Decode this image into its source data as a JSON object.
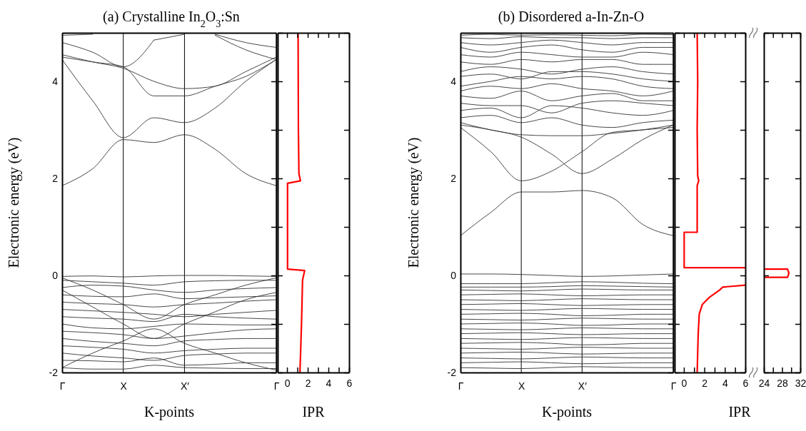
{
  "chart_data": [
    {
      "type": "line",
      "title": "(a) Crystalline In$_{2}$O$_{3}$:Sn",
      "xlabel": "K-points",
      "ylabel": "Electronic energy (eV)",
      "categories": [
        "Γ",
        null,
        "X",
        null,
        "X′",
        null,
        null,
        "Γ"
      ],
      "ylim": [
        -2,
        5
      ],
      "yticks": [
        -2,
        {
          "value": -1,
          "label": null
        },
        0,
        {
          "value": 1,
          "label": null
        },
        2,
        {
          "value": 3,
          "label": null
        },
        4
      ],
      "grid": "x",
      "marker": "none",
      "line_style": "solid",
      "series": [
        {
          "color": "#333333",
          "values": [
            1.85,
            2.2,
            2.8,
            2.74,
            2.9,
            2.6,
            2.1,
            1.85
          ]
        },
        {
          "color": "#333333",
          "values": [
            4.45,
            3.6,
            2.84,
            3.25,
            3.15,
            3.45,
            4.0,
            4.45
          ]
        },
        {
          "color": "#333333",
          "values": [
            4.5,
            4.4,
            4.3,
            3.7,
            3.7,
            3.9,
            4.1,
            4.45
          ]
        },
        {
          "color": "#333333",
          "values": [
            4.55,
            4.4,
            4.27,
            4.0,
            3.85,
            3.9,
            4.2,
            4.5
          ]
        },
        {
          "color": "#333333",
          "values": [
            4.8,
            4.6,
            4.3,
            4.85,
            null,
            null,
            null,
            null
          ]
        },
        {
          "color": "#333333",
          "values": [
            4.95,
            4.97,
            null,
            4.85,
            4.97,
            null,
            null,
            null
          ]
        },
        {
          "color": "#333333",
          "values": [
            null,
            null,
            null,
            null,
            null,
            4.97,
            4.8,
            4.7
          ]
        },
        {
          "color": "#333333",
          "values": [
            null,
            null,
            null,
            null,
            null,
            4.95,
            4.65,
            4.45
          ]
        },
        {
          "color": "#333333",
          "values": [
            -0.02,
            -0.01,
            -0.03,
            -0.01,
            0,
            0,
            -0.01,
            -0.02
          ]
        },
        {
          "color": "#333333",
          "values": [
            -0.1,
            -0.13,
            -0.16,
            -0.2,
            -0.13,
            -0.11,
            -0.1,
            -0.1
          ]
        },
        {
          "color": "#333333",
          "values": [
            -0.25,
            -0.2,
            -0.22,
            -0.3,
            -0.35,
            -0.3,
            -0.27,
            -0.25
          ]
        },
        {
          "color": "#333333",
          "values": [
            -0.4,
            -0.43,
            -0.44,
            -0.38,
            -0.48,
            -0.46,
            -0.44,
            -0.42
          ]
        },
        {
          "color": "#333333",
          "values": [
            -0.55,
            -0.58,
            -0.6,
            -0.65,
            -0.6,
            -0.57,
            -0.53,
            -0.5
          ]
        },
        {
          "color": "#333333",
          "values": [
            -0.7,
            -0.73,
            -0.76,
            -0.8,
            -0.85,
            -0.8,
            -0.76,
            -0.72
          ]
        },
        {
          "color": "#333333",
          "values": [
            -0.85,
            -0.88,
            -0.9,
            -0.95,
            -0.8,
            -0.85,
            -0.88,
            -0.9
          ]
        },
        {
          "color": "#333333",
          "values": [
            -1.0,
            -1.08,
            -1.1,
            -1.05,
            -1.0,
            -1.01,
            -1.02,
            -1.02
          ]
        },
        {
          "color": "#333333",
          "values": [
            -1.15,
            -1.18,
            -1.22,
            -1.3,
            -1.25,
            -1.18,
            -1.12,
            -1.1
          ]
        },
        {
          "color": "#333333",
          "values": [
            -1.3,
            -1.36,
            -1.4,
            -1.45,
            -1.35,
            -1.32,
            -1.3,
            -1.3
          ]
        },
        {
          "color": "#333333",
          "values": [
            -1.45,
            -1.48,
            -1.52,
            -1.6,
            -1.55,
            -1.52,
            -1.5,
            -1.5
          ]
        },
        {
          "color": "#333333",
          "values": [
            -1.6,
            -1.66,
            -1.7,
            -1.75,
            -1.65,
            -1.62,
            -1.6,
            -1.6
          ]
        },
        {
          "color": "#333333",
          "values": [
            -1.75,
            -1.76,
            -1.78,
            -1.7,
            -1.85,
            -1.83,
            -1.8,
            -1.8
          ]
        },
        {
          "color": "#333333",
          "values": [
            -1.9,
            -1.93,
            -1.93,
            -1.85,
            -1.9,
            -1.91,
            -1.92,
            -1.92
          ]
        },
        {
          "color": "#333333",
          "values": [
            -0.3,
            -0.65,
            -1.0,
            -1.3,
            -1.0,
            -0.75,
            -0.5,
            -0.35
          ]
        },
        {
          "color": "#333333",
          "values": [
            -1.9,
            -1.6,
            -1.35,
            -1.1,
            -1.4,
            -1.6,
            -1.8,
            -1.95
          ]
        },
        {
          "color": "#333333",
          "values": [
            -0.05,
            -0.3,
            -0.6,
            -0.9,
            -0.6,
            -0.4,
            -0.2,
            -0.05
          ]
        }
      ]
    },
    {
      "type": "line",
      "xlabel": "IPR",
      "xlim": [
        -0.9,
        6
      ],
      "xticks": [
        0,
        {
          "value": 1,
          "label": null
        },
        2,
        {
          "value": 3,
          "label": null
        },
        4,
        {
          "value": 5,
          "label": null
        },
        6
      ],
      "ylim": [
        -2,
        5
      ],
      "yticks": [
        -2,
        -1,
        0,
        1,
        2,
        3,
        4,
        5
      ],
      "tick_labels": "x",
      "grid": false,
      "marker": "none",
      "line_style": "solid",
      "series": [
        {
          "color": "#ff0000",
          "x": [
            1.07,
            1.1,
            1.15,
            1.3,
            0.05,
            0.05,
            1.7,
            1.5,
            1.4,
            1.25
          ],
          "values": [
            5,
            3,
            2.1,
            1.95,
            1.9,
            0.13,
            0.1,
            -0.1,
            -1,
            -2
          ]
        }
      ]
    },
    {
      "type": "line",
      "title": "(b) Disordered a-In-Zn-O",
      "xlabel": "K-points",
      "ylabel": "Electronic energy (eV)",
      "categories": [
        "Γ",
        null,
        "X",
        null,
        "X′",
        null,
        null,
        "Γ"
      ],
      "ylim": [
        -2,
        5
      ],
      "yticks": [
        -2,
        {
          "value": -1,
          "label": null
        },
        0,
        {
          "value": 1,
          "label": null
        },
        2,
        {
          "value": 3,
          "label": null
        },
        4
      ],
      "grid": "x",
      "marker": "none",
      "line_style": "solid",
      "series": [
        {
          "color": "#333333",
          "values": [
            0.82,
            1.3,
            1.72,
            1.72,
            1.75,
            1.6,
            1.05,
            0.82
          ]
        },
        {
          "color": "#333333",
          "values": [
            3.05,
            2.55,
            1.95,
            2.15,
            2.55,
            2.95,
            3.0,
            3.05
          ]
        },
        {
          "color": "#333333",
          "values": [
            3.1,
            3.0,
            2.85,
            2.5,
            2.1,
            2.4,
            2.8,
            3.1
          ]
        },
        {
          "color": "#333333",
          "values": [
            3.15,
            3.0,
            2.9,
            2.88,
            2.88,
            2.93,
            3.0,
            3.1
          ]
        },
        {
          "color": "#333333",
          "values": [
            3.25,
            3.3,
            3.15,
            3.25,
            3.1,
            3.05,
            3.15,
            3.2
          ]
        },
        {
          "color": "#333333",
          "values": [
            3.4,
            3.45,
            3.25,
            3.5,
            3.45,
            3.35,
            3.3,
            3.4
          ]
        },
        {
          "color": "#333333",
          "values": [
            3.55,
            3.5,
            3.5,
            3.35,
            3.55,
            3.6,
            3.55,
            3.5
          ]
        },
        {
          "color": "#333333",
          "values": [
            3.7,
            3.65,
            3.8,
            3.6,
            3.7,
            3.75,
            3.6,
            3.6
          ]
        },
        {
          "color": "#333333",
          "values": [
            3.8,
            3.9,
            3.85,
            3.95,
            3.85,
            3.8,
            3.7,
            3.8
          ]
        },
        {
          "color": "#333333",
          "values": [
            3.9,
            4.0,
            4.1,
            4.05,
            4.1,
            4.05,
            3.9,
            3.85
          ]
        },
        {
          "color": "#333333",
          "values": [
            4.1,
            4.15,
            4.05,
            4.2,
            4.2,
            4.15,
            4.05,
            4.0
          ]
        },
        {
          "color": "#333333",
          "values": [
            4.2,
            4.3,
            4.25,
            4.15,
            4.25,
            4.3,
            4.2,
            4.15
          ]
        },
        {
          "color": "#333333",
          "values": [
            4.4,
            4.35,
            4.45,
            4.4,
            4.45,
            4.45,
            4.35,
            4.35
          ]
        },
        {
          "color": "#333333",
          "values": [
            4.55,
            4.5,
            4.6,
            4.55,
            4.5,
            4.5,
            4.6,
            4.55
          ]
        },
        {
          "color": "#333333",
          "values": [
            4.7,
            4.6,
            4.7,
            4.75,
            4.65,
            4.6,
            4.7,
            4.7
          ]
        },
        {
          "color": "#333333",
          "values": [
            4.8,
            4.75,
            4.8,
            4.85,
            4.8,
            4.75,
            4.8,
            4.8
          ]
        },
        {
          "color": "#333333",
          "values": [
            4.9,
            4.88,
            4.92,
            4.9,
            4.9,
            4.88,
            4.9,
            4.9
          ]
        },
        {
          "color": "#333333",
          "values": [
            4.95,
            4.97,
            4.95,
            4.96,
            4.95,
            4.94,
            4.97,
            4.96
          ]
        },
        {
          "color": "#333333",
          "values": [
            0.03,
            0.03,
            0.02,
            0,
            -0.02,
            -0.01,
            0.01,
            0.03
          ]
        },
        {
          "color": "#333333",
          "values": [
            -0.17,
            -0.17,
            -0.17,
            -0.15,
            -0.13,
            -0.14,
            -0.16,
            -0.17
          ]
        },
        {
          "color": "#333333",
          "values": [
            -0.24,
            -0.24,
            -0.24,
            -0.23,
            -0.21,
            -0.22,
            -0.23,
            -0.24
          ]
        },
        {
          "color": "#333333",
          "values": [
            -0.3,
            -0.31,
            -0.32,
            -0.3,
            -0.28,
            -0.29,
            -0.3,
            -0.3
          ]
        },
        {
          "color": "#333333",
          "values": [
            -0.4,
            -0.39,
            -0.38,
            -0.4,
            -0.42,
            -0.41,
            -0.4,
            -0.4
          ]
        },
        {
          "color": "#333333",
          "values": [
            -0.5,
            -0.51,
            -0.52,
            -0.5,
            -0.48,
            -0.49,
            -0.5,
            -0.5
          ]
        },
        {
          "color": "#333333",
          "values": [
            -0.6,
            -0.59,
            -0.58,
            -0.6,
            -0.62,
            -0.61,
            -0.6,
            -0.6
          ]
        },
        {
          "color": "#333333",
          "values": [
            -0.7,
            -0.71,
            -0.72,
            -0.7,
            -0.68,
            -0.69,
            -0.7,
            -0.7
          ]
        },
        {
          "color": "#333333",
          "values": [
            -0.8,
            -0.79,
            -0.78,
            -0.8,
            -0.83,
            -0.82,
            -0.8,
            -0.8
          ]
        },
        {
          "color": "#333333",
          "values": [
            -0.9,
            -0.91,
            -0.92,
            -0.9,
            -0.88,
            -0.89,
            -0.9,
            -0.9
          ]
        },
        {
          "color": "#333333",
          "values": [
            -1.0,
            -0.99,
            -0.98,
            -1.0,
            -1.03,
            -1.02,
            -1.0,
            -1.0
          ]
        },
        {
          "color": "#333333",
          "values": [
            -1.1,
            -1.11,
            -1.12,
            -1.1,
            -1.08,
            -1.09,
            -1.1,
            -1.1
          ]
        },
        {
          "color": "#333333",
          "values": [
            -1.2,
            -1.19,
            -1.18,
            -1.2,
            -1.22,
            -1.21,
            -1.2,
            -1.2
          ]
        },
        {
          "color": "#333333",
          "values": [
            -1.3,
            -1.31,
            -1.32,
            -1.3,
            -1.28,
            -1.29,
            -1.3,
            -1.3
          ]
        },
        {
          "color": "#333333",
          "values": [
            -1.4,
            -1.39,
            -1.38,
            -1.4,
            -1.43,
            -1.42,
            -1.4,
            -1.4
          ]
        },
        {
          "color": "#333333",
          "values": [
            -1.5,
            -1.51,
            -1.52,
            -1.5,
            -1.48,
            -1.49,
            -1.5,
            -1.5
          ]
        },
        {
          "color": "#333333",
          "values": [
            -1.6,
            -1.59,
            -1.58,
            -1.6,
            -1.62,
            -1.61,
            -1.6,
            -1.6
          ]
        },
        {
          "color": "#333333",
          "values": [
            -1.7,
            -1.71,
            -1.72,
            -1.7,
            -1.68,
            -1.69,
            -1.7,
            -1.7
          ]
        },
        {
          "color": "#333333",
          "values": [
            -1.8,
            -1.79,
            -1.78,
            -1.8,
            -1.82,
            -1.81,
            -1.8,
            -1.8
          ]
        },
        {
          "color": "#333333",
          "values": [
            -1.9,
            -1.91,
            -1.92,
            -1.9,
            -1.88,
            -1.89,
            -1.9,
            -1.9
          ]
        }
      ]
    },
    {
      "type": "line",
      "xlabel": "IPR",
      "xlim": [
        -0.9,
        6
      ],
      "xticks": [
        0,
        {
          "value": 1,
          "label": null
        },
        2,
        {
          "value": 3,
          "label": null
        },
        4,
        {
          "value": 5,
          "label": null
        },
        6
      ],
      "ylim": [
        -2,
        5
      ],
      "yticks": [
        -2,
        -1,
        0,
        1,
        2,
        3,
        4,
        5
      ],
      "tick_labels": "x",
      "grid": false,
      "marker": "none",
      "line_style": "solid",
      "series": [
        {
          "color": "#ff0000",
          "x": [
            1.3,
            1.35,
            1.3,
            1.35,
            1.45,
            1.3,
            1.3,
            0.03,
            0.03,
            6,
            null,
            6,
            3.8,
            3.5,
            2.5,
            1.8,
            1.5,
            1.4,
            1.3
          ],
          "values": [
            5,
            4,
            3,
            2.05,
            1.95,
            1.85,
            0.89,
            0.89,
            0.16,
            0.16,
            null,
            -0.2,
            -0.24,
            -0.3,
            -0.45,
            -0.6,
            -0.8,
            -1.2,
            -2
          ]
        }
      ]
    },
    {
      "type": "line",
      "xlim": [
        24,
        32
      ],
      "xticks": [
        24,
        {
          "value": 26,
          "label": null
        },
        28,
        {
          "value": 30,
          "label": null
        },
        32
      ],
      "ylim": [
        -2,
        5
      ],
      "yticks": [
        -2,
        -1,
        0,
        1,
        2,
        3,
        4,
        5
      ],
      "tick_labels": "x",
      "grid": false,
      "marker": "none",
      "line_style": "solid",
      "series": [
        {
          "color": "#ff0000",
          "x": [
            24,
            29.2,
            29.5,
            29.2,
            24
          ],
          "values": [
            0.13,
            0.13,
            0.05,
            -0.04,
            -0.04
          ]
        }
      ]
    }
  ]
}
